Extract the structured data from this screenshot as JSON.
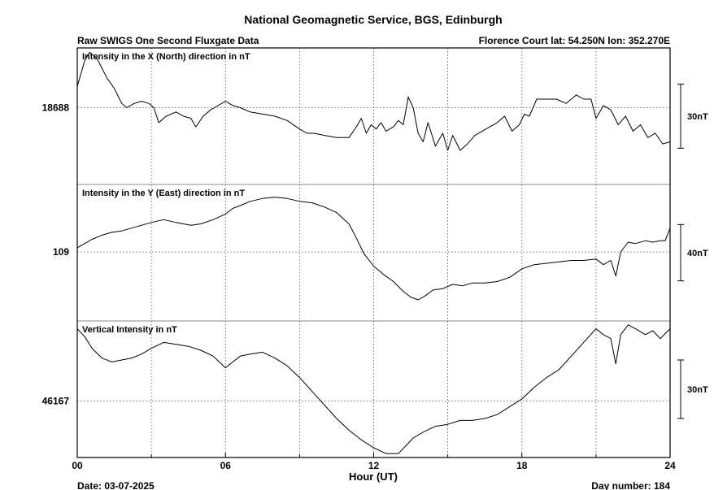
{
  "chart_data": {
    "type": "line",
    "title": "National Geomagnetic Service, BGS, Edinburgh",
    "subtitle_left": "Raw SWIGS One Second Fluxgate Data",
    "subtitle_right": "Florence Court  lat: 54.250N lon: 352.270E",
    "xlabel": "Hour (UT)",
    "x_ticks": [
      "00",
      "06",
      "12",
      "18",
      "24"
    ],
    "xlim": [
      0,
      24
    ],
    "grid": true,
    "date_label": "Date: 03-07-2025",
    "day_label": "Day number:  184",
    "panels": [
      {
        "title": "Intensity in the X (North) direction in nT",
        "ref_label": "18688",
        "ref_value": 18688,
        "scale_label": "30nT",
        "scale_nT": 30,
        "ylim": [
          18652,
          18716
        ],
        "series": {
          "x": [
            0,
            0.3,
            0.5,
            0.8,
            1.2,
            1.5,
            1.8,
            2.0,
            2.3,
            2.6,
            2.9,
            3.1,
            3.3,
            3.6,
            4.0,
            4.3,
            4.6,
            4.8,
            5.1,
            5.4,
            5.7,
            6.0,
            6.3,
            6.6,
            7.0,
            7.5,
            8.0,
            8.5,
            9.0,
            9.3,
            9.6,
            10.0,
            10.5,
            11.0,
            11.3,
            11.5,
            11.7,
            11.9,
            12.1,
            12.3,
            12.5,
            12.8,
            13.0,
            13.2,
            13.4,
            13.6,
            13.8,
            14.0,
            14.2,
            14.5,
            14.8,
            15.0,
            15.2,
            15.5,
            15.8,
            16.1,
            16.4,
            16.7,
            17.0,
            17.3,
            17.6,
            17.9,
            18.1,
            18.3,
            18.6,
            19.0,
            19.4,
            19.8,
            20.2,
            20.5,
            20.8,
            21.0,
            21.3,
            21.6,
            21.9,
            22.2,
            22.5,
            22.8,
            23.1,
            23.4,
            23.7,
            24.0
          ],
          "values": [
            18698,
            18710,
            18714,
            18711,
            18702,
            18697,
            18690,
            18688,
            18690,
            18691,
            18690,
            18688,
            18681,
            18684,
            18686,
            18684,
            18683,
            18679,
            18684,
            18687,
            18689,
            18691,
            18689,
            18688,
            18686,
            18685,
            18684,
            18682,
            18678,
            18676,
            18676,
            18675,
            18674,
            18674,
            18679,
            18683,
            18676,
            18680,
            18678,
            18681,
            18677,
            18679,
            18682,
            18680,
            18693,
            18688,
            18676,
            18672,
            18681,
            18670,
            18676,
            18668,
            18675,
            18668,
            18671,
            18675,
            18677,
            18679,
            18681,
            18684,
            18677,
            18680,
            18685,
            18684,
            18692,
            18692,
            18692,
            18690,
            18694,
            18692,
            18692,
            18683,
            18689,
            18687,
            18680,
            18684,
            18677,
            18680,
            18674,
            18676,
            18671,
            18672
          ]
        }
      },
      {
        "title": "Intensity in the Y (East) direction in nT",
        "ref_label": "109",
        "ref_value": 109,
        "scale_label": "40nT",
        "scale_nT": 40,
        "ylim": [
          60,
          157
        ],
        "series": {
          "x": [
            0,
            0.3,
            0.6,
            1.0,
            1.4,
            1.8,
            2.2,
            2.6,
            3.0,
            3.5,
            4.0,
            4.3,
            4.6,
            5.0,
            5.5,
            6.0,
            6.3,
            6.6,
            7.0,
            7.5,
            8.0,
            8.5,
            9.0,
            9.5,
            10.0,
            10.5,
            11.0,
            11.3,
            11.6,
            12.0,
            12.4,
            12.8,
            13.2,
            13.5,
            13.8,
            14.1,
            14.4,
            14.8,
            15.2,
            15.6,
            16.0,
            16.5,
            17.0,
            17.5,
            18.0,
            18.5,
            19.0,
            19.5,
            20.0,
            20.5,
            21.0,
            21.3,
            21.6,
            21.8,
            22.0,
            22.3,
            22.6,
            23.0,
            23.3,
            23.6,
            23.8,
            24.0
          ],
          "values": [
            112,
            115,
            118,
            121,
            123,
            124,
            126,
            128,
            130,
            132,
            130,
            129,
            128,
            129,
            132,
            136,
            140,
            142,
            145,
            147,
            148,
            147,
            145,
            144,
            141,
            137,
            129,
            119,
            108,
            99,
            93,
            88,
            81,
            77,
            75,
            78,
            82,
            83,
            86,
            85,
            87,
            87,
            88,
            91,
            97,
            100,
            101,
            102,
            103,
            103,
            104,
            100,
            103,
            92,
            109,
            116,
            115,
            117,
            116,
            117,
            117,
            126
          ]
        }
      },
      {
        "title": "Vertical Intensity in nT",
        "ref_label": "46167",
        "ref_value": 46167,
        "scale_label": "30nT",
        "scale_nT": 30,
        "ylim": [
          46138,
          46208
        ],
        "series": {
          "x": [
            0,
            0.3,
            0.6,
            1.0,
            1.4,
            1.8,
            2.2,
            2.6,
            3.0,
            3.5,
            4.0,
            4.5,
            5.0,
            5.5,
            6.0,
            6.3,
            6.6,
            7.0,
            7.5,
            8.0,
            8.5,
            9.0,
            9.5,
            10.0,
            10.5,
            11.0,
            11.5,
            12.0,
            12.5,
            13.0,
            13.3,
            13.6,
            14.0,
            14.5,
            15.0,
            15.5,
            16.0,
            16.5,
            17.0,
            17.5,
            18.0,
            18.5,
            19.0,
            19.5,
            20.0,
            20.5,
            21.0,
            21.3,
            21.6,
            21.8,
            22.0,
            22.3,
            22.6,
            23.0,
            23.3,
            23.6,
            24.0
          ],
          "values": [
            46204,
            46200,
            46194,
            46189,
            46187,
            46188,
            46189,
            46191,
            46194,
            46197,
            46196,
            46195,
            46193,
            46190,
            46184,
            46187,
            46190,
            46191,
            46192,
            46189,
            46185,
            46179,
            46172,
            46165,
            46158,
            46152,
            46147,
            46143,
            46140,
            46140,
            46144,
            46148,
            46151,
            46154,
            46155,
            46157,
            46157,
            46158,
            46160,
            46164,
            46168,
            46174,
            46179,
            46183,
            46190,
            46197,
            46204,
            46201,
            46199,
            46186,
            46201,
            46206,
            46204,
            46201,
            46203,
            46199,
            46204
          ]
        }
      }
    ]
  }
}
